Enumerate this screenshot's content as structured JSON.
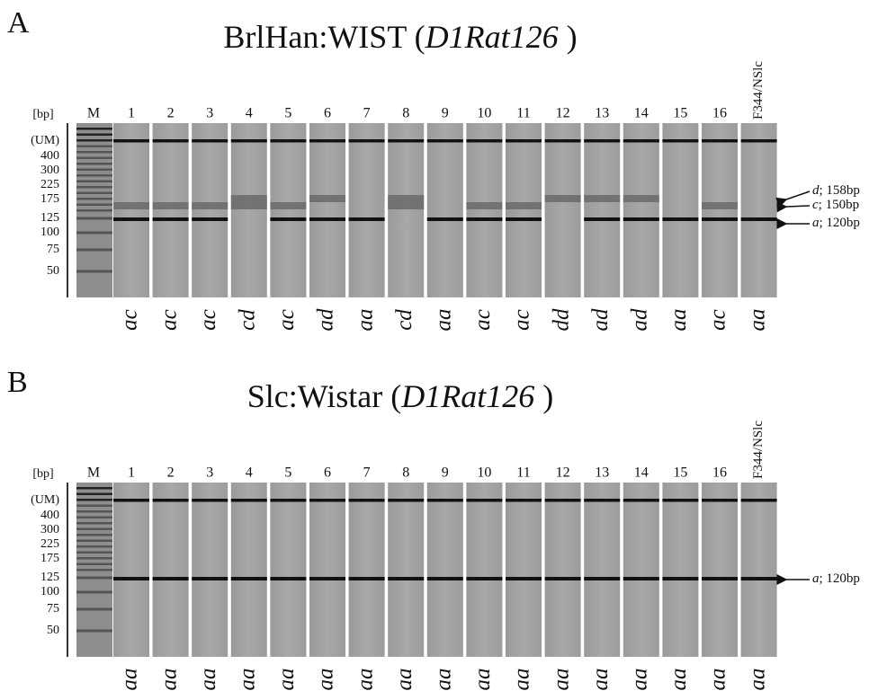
{
  "panels": [
    {
      "letter": "A",
      "title": {
        "text": "BrlHan:WIST (",
        "gene": "D1Rat126",
        "close": " )"
      },
      "bp_label": "[bp]",
      "marker_label": "M",
      "ladder": [
        "(UM)",
        "400",
        "300",
        "225",
        "175",
        "125",
        "100",
        "75",
        "50"
      ],
      "lanes": [
        "1",
        "2",
        "3",
        "4",
        "5",
        "6",
        "7",
        "8",
        "9",
        "10",
        "11",
        "12",
        "13",
        "14",
        "15",
        "16",
        "F344/NSlc"
      ],
      "genotypes": [
        "ac",
        "ac",
        "ac",
        "cd",
        "ac",
        "ad",
        "aa",
        "cd",
        "aa",
        "ac",
        "ac",
        "dd",
        "ad",
        "ad",
        "aa",
        "ac",
        "aa"
      ],
      "annotations": [
        {
          "allele": "d",
          "size": "; 158bp"
        },
        {
          "allele": "c",
          "size": "; 150bp"
        },
        {
          "allele": "a",
          "size": "; 120bp"
        }
      ]
    },
    {
      "letter": "B",
      "title": {
        "text": "Slc:Wistar (",
        "gene": "D1Rat126",
        "close": " )"
      },
      "bp_label": "[bp]",
      "marker_label": "M",
      "ladder": [
        "(UM)",
        "400",
        "300",
        "225",
        "175",
        "125",
        "100",
        "75",
        "50"
      ],
      "lanes": [
        "1",
        "2",
        "3",
        "4",
        "5",
        "6",
        "7",
        "8",
        "9",
        "10",
        "11",
        "12",
        "13",
        "14",
        "15",
        "16",
        "F344/NSlc"
      ],
      "genotypes": [
        "aa",
        "aa",
        "aa",
        "aa",
        "aa",
        "aa",
        "aa",
        "aa",
        "aa",
        "aa",
        "aa",
        "aa",
        "aa",
        "aa",
        "aa",
        "aa",
        "aa"
      ],
      "annotations": [
        {
          "allele": "a",
          "size": "; 120bp"
        }
      ]
    }
  ]
}
